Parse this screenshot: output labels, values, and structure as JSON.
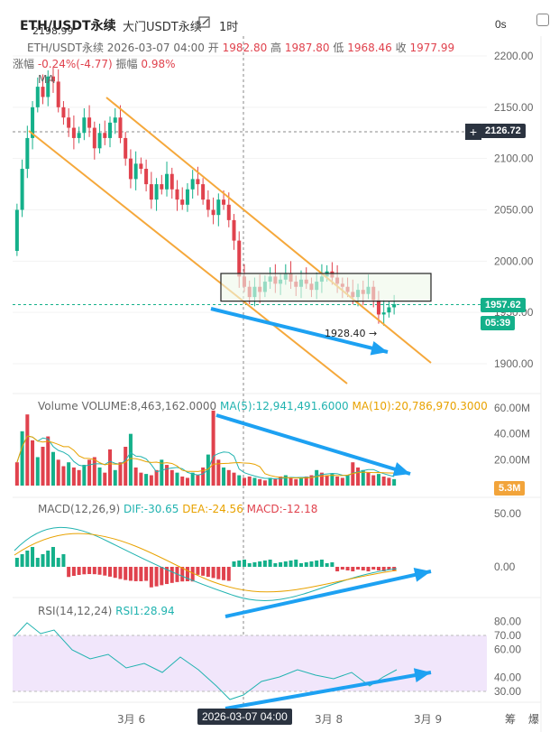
{
  "header": {
    "title": "ETH/USDT永续",
    "subtitle": "大门USDT永续",
    "timeframe": "1时",
    "countdown": "0s"
  },
  "ohlc": {
    "symbol": "ETH/USDT永续",
    "datetime": "2026-03-07 04:00",
    "open_label": "开",
    "open": "1982.80",
    "high_label": "高",
    "high": "1987.80",
    "low_label": "低",
    "low": "1968.46",
    "close_label": "收",
    "close": "1977.99",
    "change_label": "涨幅",
    "change": "-0.24%(-4.77)",
    "amp_label": "振幅",
    "amp": "0.98%",
    "ma_label": "MA"
  },
  "volume_legend": {
    "label": "Volume",
    "volume": "VOLUME:8,463,162.0000",
    "ma5": "MA(5):12,941,491.6000",
    "ma10": "MA(10):20,786,970.3000"
  },
  "macd_legend": {
    "label": "MACD(12,26,9)",
    "dif": "DIF:-30.65",
    "dea": "DEA:-24.56",
    "macd": "MACD:-12.18"
  },
  "rsi_legend": {
    "label": "RSI(14,12,24)",
    "rsi1": "RSI1:28.94"
  },
  "price_tags": {
    "crosshair_price": "2126.72",
    "last_price": "1957.62",
    "last_countdown": "05:39",
    "volume_tag": "5.3M",
    "high_mark": "2198.99",
    "low_mark": "1928.40 →"
  },
  "x_axis": {
    "labels": [
      "3月 6",
      "3月 8",
      "3月 9"
    ],
    "crosshair_time": "2026-03-07 04:00"
  },
  "bottom": {
    "b1": "筹",
    "b2": "爆"
  },
  "colors": {
    "up": "#14b08a",
    "down": "#e0424d",
    "channel": "#f5a83b",
    "arrow": "#1da1f2",
    "rsi_band": "#f1e6fb"
  },
  "chart_data": [
    {
      "type": "candlestick",
      "title": "ETH/USDT永续 1时",
      "y_ticks": [
        2200,
        2150,
        2100,
        2050,
        2000,
        1950,
        1900
      ],
      "ylim": [
        1890,
        2225
      ],
      "x_labels": [
        "3月 6",
        "3月 8",
        "3月 9"
      ],
      "approx_close": [
        2050,
        2090,
        2120,
        2150,
        2170,
        2160,
        2180,
        2175,
        2150,
        2140,
        2130,
        2120,
        2125,
        2140,
        2130,
        2110,
        2125,
        2120,
        2135,
        2140,
        2120,
        2100,
        2080,
        2095,
        2090,
        2075,
        2060,
        2075,
        2070,
        2085,
        2070,
        2060,
        2055,
        2070,
        2080,
        2075,
        2060,
        2050,
        2045,
        2060,
        2055,
        2040,
        2020,
        1985,
        1975,
        1965,
        1975,
        1970,
        1980,
        1985,
        1978,
        1982,
        1988,
        1980,
        1975,
        1982,
        1978,
        1972,
        1980,
        1985,
        1990,
        1984,
        1978,
        1975,
        1970,
        1965,
        1972,
        1968,
        1975,
        1962,
        1948,
        1950,
        1955,
        1958
      ],
      "annotations": {
        "high": 2198.99,
        "low": 1928.4,
        "box": [
          1961,
          1988
        ],
        "last": 1957.62
      }
    },
    {
      "type": "bar",
      "title": "Volume",
      "series": [
        {
          "name": "VOLUME",
          "last": 8463162
        },
        {
          "name": "MA(5)",
          "last": 12941491.6
        },
        {
          "name": "MA(10)",
          "last": 20786970.3
        }
      ],
      "y_ticks": [
        "60.00M",
        "40.00M",
        "20.00M"
      ],
      "approx_values_M": [
        18,
        42,
        55,
        35,
        22,
        30,
        38,
        26,
        20,
        15,
        18,
        14,
        12,
        16,
        20,
        22,
        14,
        10,
        28,
        12,
        18,
        30,
        40,
        14,
        10,
        9,
        8,
        12,
        20,
        16,
        12,
        10,
        7,
        6,
        10,
        8,
        14,
        24,
        58,
        20,
        14,
        12,
        10,
        8,
        6,
        7,
        6,
        5,
        4,
        6,
        5,
        7,
        8,
        6,
        5,
        6,
        7,
        8,
        12,
        10,
        8,
        9,
        7,
        6,
        8,
        18,
        14,
        12,
        10,
        8,
        9,
        7,
        6,
        5
      ]
    },
    {
      "type": "bar",
      "title": "MACD(12,26,9)",
      "series": [
        {
          "name": "DIF",
          "last": -30.65
        },
        {
          "name": "DEA",
          "last": -24.56
        },
        {
          "name": "MACD",
          "last": -12.18
        }
      ],
      "y_ticks": [
        50.0,
        0.0
      ]
    },
    {
      "type": "line",
      "title": "RSI(14,12,24)",
      "series": [
        {
          "name": "RSI1",
          "last": 28.94
        }
      ],
      "y_ticks": [
        80,
        70,
        60,
        40,
        30
      ],
      "band": [
        30,
        70
      ]
    }
  ]
}
